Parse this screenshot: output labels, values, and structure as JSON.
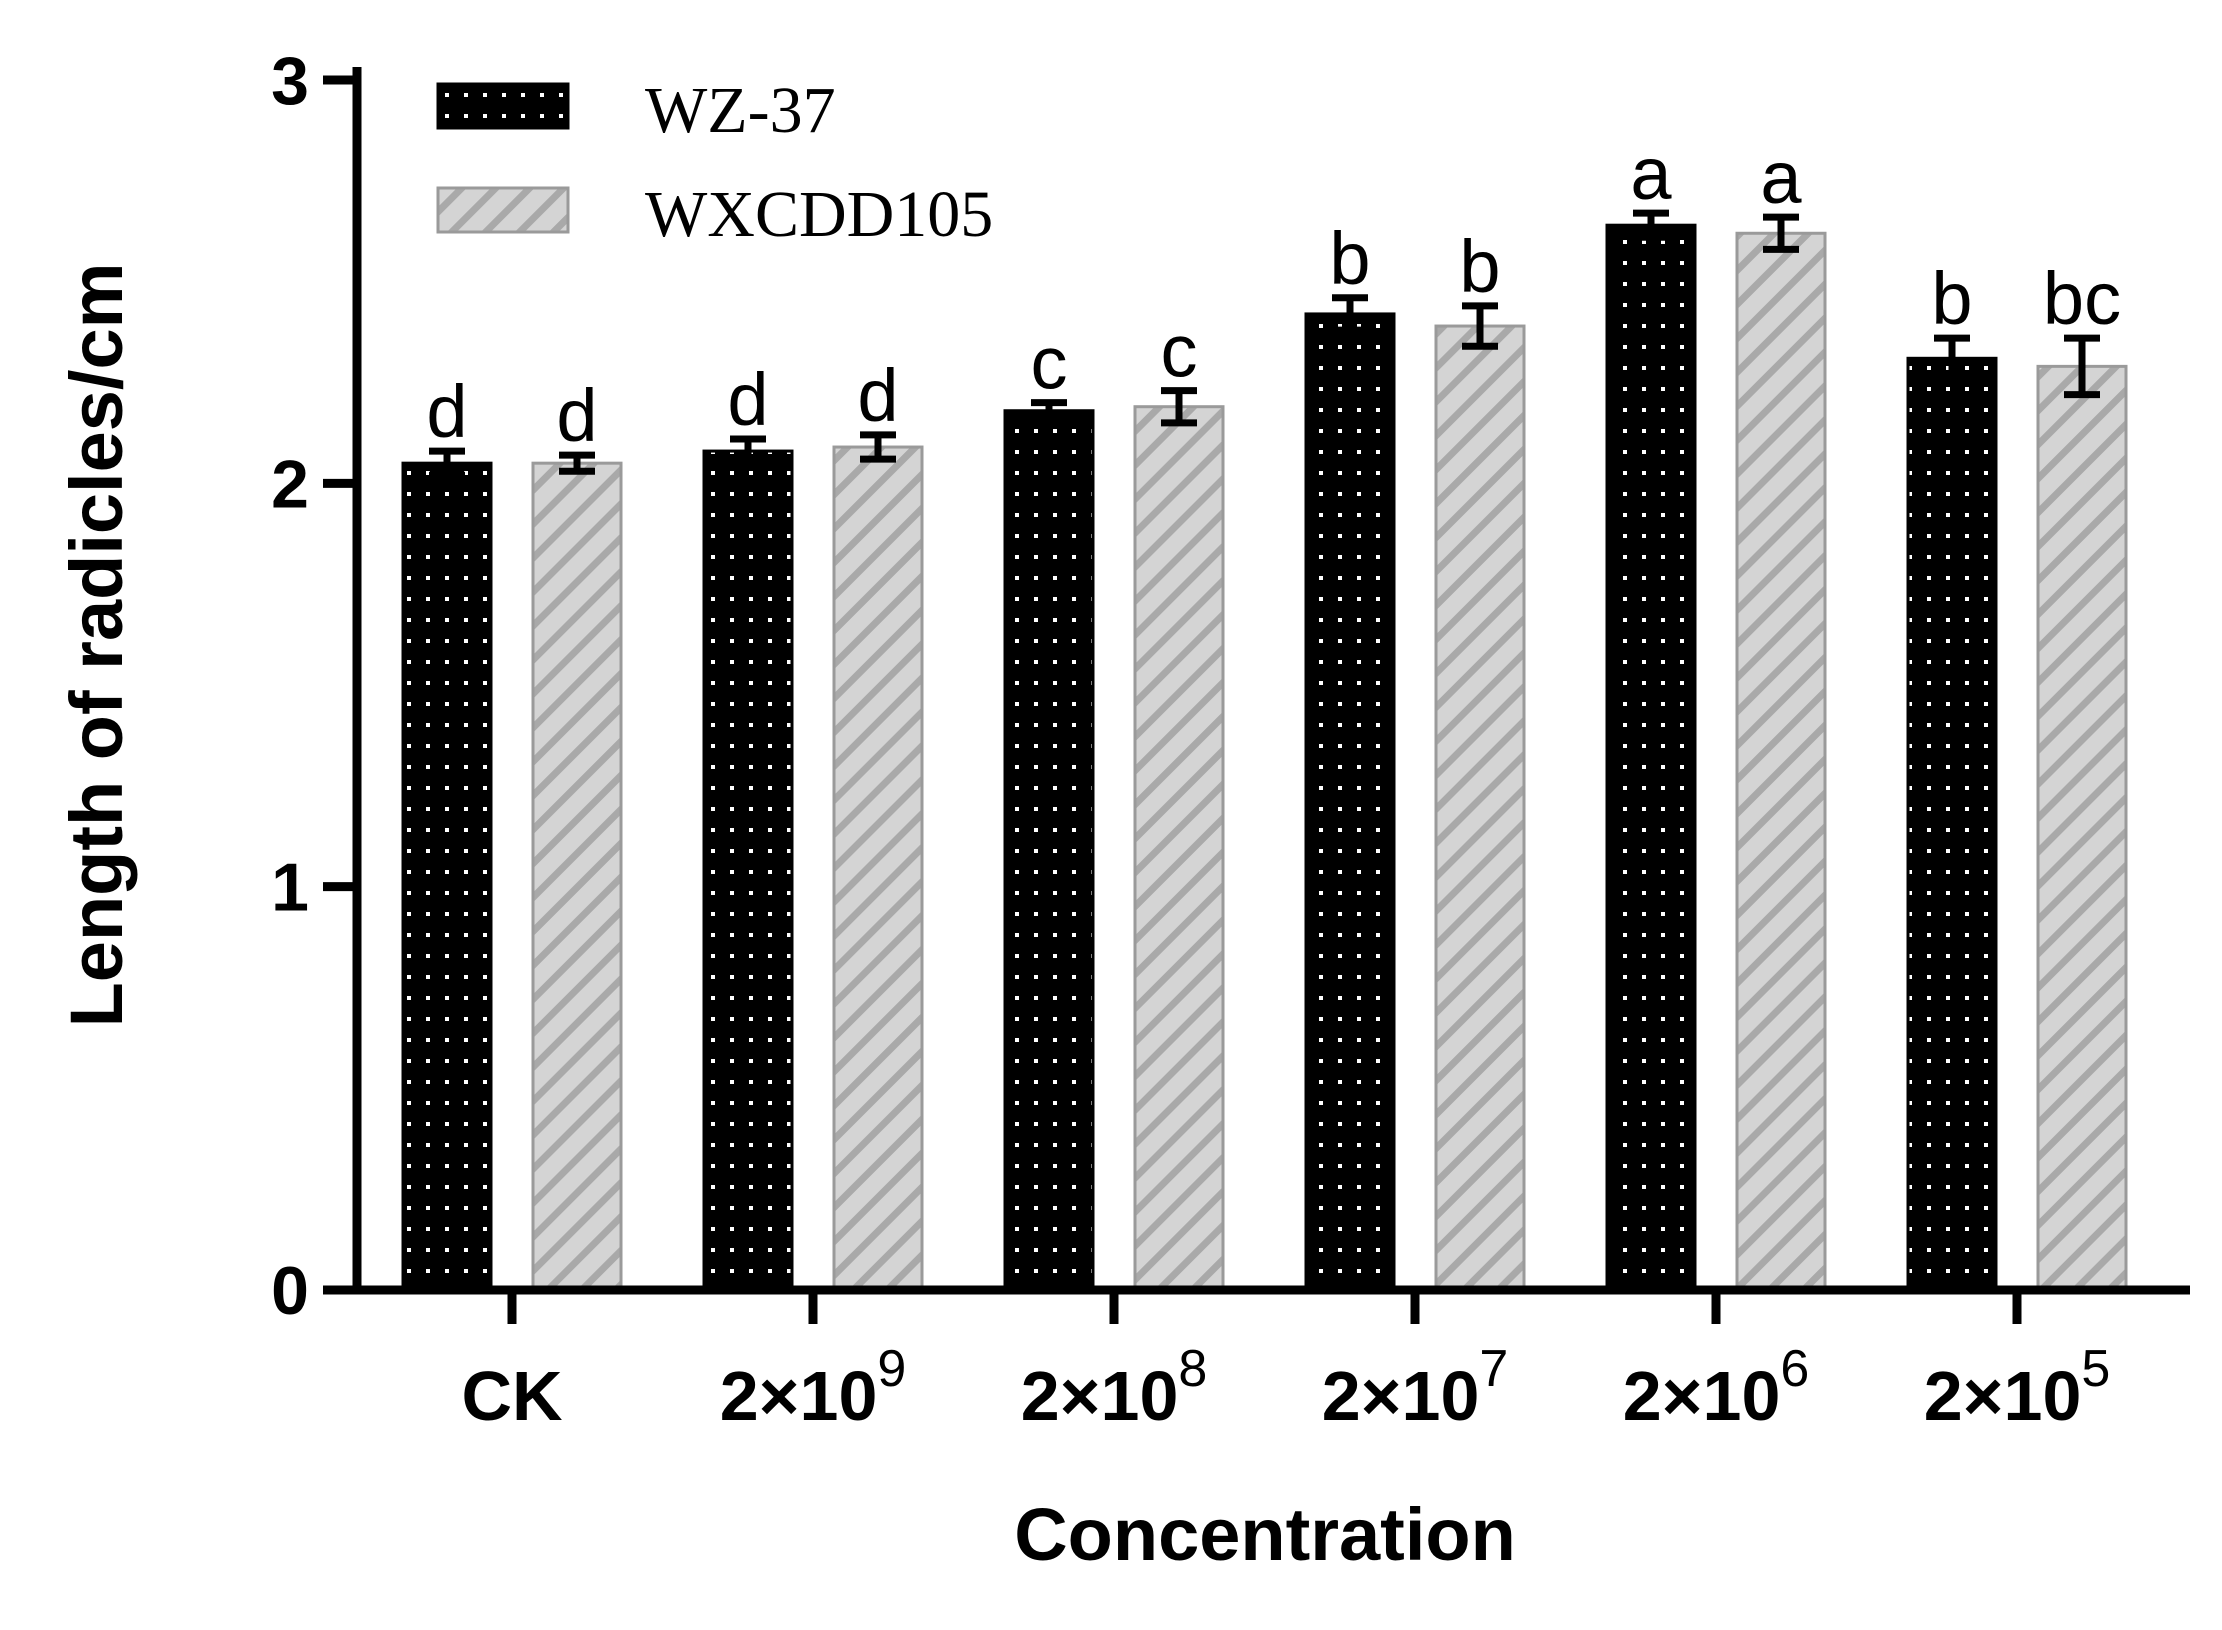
{
  "chart_data": {
    "type": "bar",
    "title": "",
    "xlabel": "Concentration",
    "ylabel": "Length of radicles/cm",
    "ylim": [
      0,
      3
    ],
    "yticks": [
      "0",
      "1",
      "2",
      "3"
    ],
    "categories": [
      {
        "base": "CK",
        "sup": ""
      },
      {
        "base": "2×10",
        "sup": "9"
      },
      {
        "base": "2×10",
        "sup": "8"
      },
      {
        "base": "2×10",
        "sup": "7"
      },
      {
        "base": "2×10",
        "sup": "6"
      },
      {
        "base": "2×10",
        "sup": "5"
      }
    ],
    "series": [
      {
        "name": "WZ-37",
        "pattern": "dots",
        "color": "#000000",
        "values": [
          2.05,
          2.08,
          2.18,
          2.42,
          2.64,
          2.31
        ],
        "errors": [
          0.03,
          0.03,
          0.02,
          0.04,
          0.03,
          0.05
        ],
        "labels": [
          "d",
          "d",
          "c",
          "b",
          "a",
          "b"
        ]
      },
      {
        "name": "WXCDD105",
        "pattern": "hatch",
        "color": "#d4d4d4",
        "values": [
          2.05,
          2.09,
          2.19,
          2.39,
          2.62,
          2.29
        ],
        "errors": [
          0.02,
          0.03,
          0.04,
          0.05,
          0.04,
          0.07
        ],
        "labels": [
          "d",
          "d",
          "c",
          "b",
          "a",
          "bc"
        ]
      }
    ],
    "legend": "top-left"
  }
}
